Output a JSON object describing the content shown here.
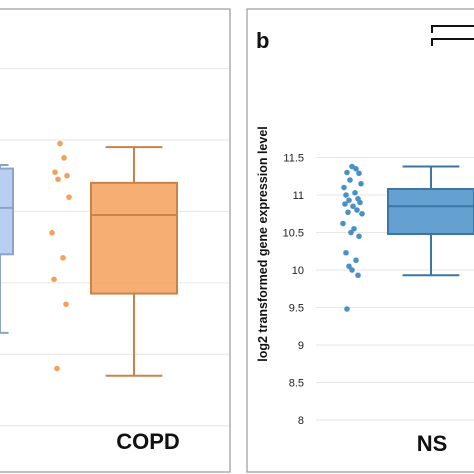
{
  "chart_data": [
    {
      "type": "box",
      "panel_label": "",
      "categories": [
        "",
        "COPD"
      ],
      "colors": [
        "#aac8f0",
        "#f5a05a"
      ],
      "series": [
        {
          "name": "",
          "box": {
            "min": 8.3,
            "q1": 9.4,
            "median": 10.05,
            "q3": 10.6,
            "max": 10.65
          },
          "points": []
        },
        {
          "name": "COPD",
          "box": {
            "min": 7.7,
            "q1": 8.85,
            "median": 9.95,
            "q3": 10.4,
            "max": 10.9
          },
          "points": [
            10.95,
            10.75,
            10.55,
            10.5,
            10.45,
            10.2,
            9.7,
            9.35,
            9.05,
            8.7,
            7.8
          ]
        }
      ],
      "ylim": [
        6.8,
        12.4
      ],
      "grid": true
    },
    {
      "type": "box",
      "panel_label": "b",
      "ylabel": "log2 transformed gene expression level",
      "yticks": [
        8,
        8.5,
        9,
        9.5,
        10,
        10.5,
        11,
        11.5
      ],
      "ylim": [
        7.9,
        11.65
      ],
      "categories": [
        "NS"
      ],
      "colors": [
        "#4a90c8"
      ],
      "series": [
        {
          "name": "NS",
          "box": {
            "min": 9.93,
            "q1": 10.48,
            "median": 10.85,
            "q3": 11.08,
            "max": 11.38
          },
          "points": [
            11.38,
            11.35,
            11.3,
            11.29,
            11.2,
            11.15,
            11.1,
            11.03,
            11.0,
            10.95,
            10.93,
            10.9,
            10.88,
            10.85,
            10.8,
            10.77,
            10.75,
            10.62,
            10.55,
            10.5,
            10.45,
            10.23,
            10.13,
            10.05,
            10.0,
            9.93,
            9.48
          ]
        }
      ],
      "grid": true
    }
  ]
}
